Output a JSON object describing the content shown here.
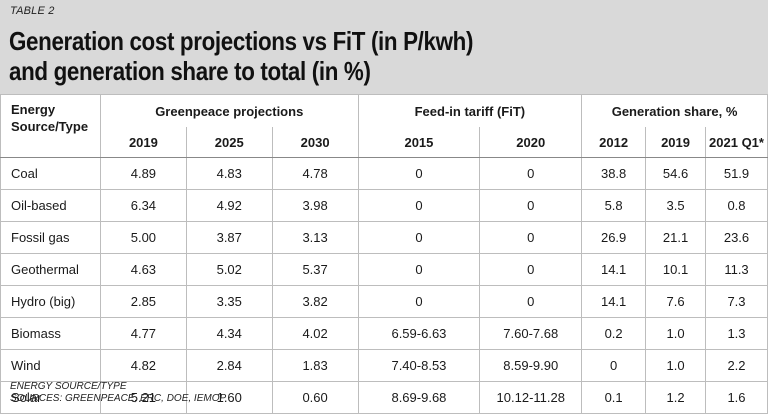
{
  "header": {
    "table_label": "TABLE 2",
    "title_line1": "Generation cost projections vs FiT (in P/kwh)",
    "title_line2": "and generation share to total (in %)"
  },
  "table": {
    "source_header": [
      "Energy",
      "Source/Type"
    ],
    "groups": [
      "Greenpeace projections",
      "Feed-in tariff (FiT)",
      "Generation share, %"
    ],
    "years": [
      "2019",
      "2025",
      "2030",
      "2015",
      "2020",
      "2012",
      "2019",
      "2021 Q1*"
    ],
    "rows": [
      {
        "name": "Coal",
        "values": [
          "4.89",
          "4.83",
          "4.78",
          "0",
          "0",
          "38.8",
          "54.6",
          "51.9"
        ]
      },
      {
        "name": "Oil-based",
        "values": [
          "6.34",
          "4.92",
          "3.98",
          "0",
          "0",
          "5.8",
          "3.5",
          "0.8"
        ]
      },
      {
        "name": "Fossil gas",
        "values": [
          "5.00",
          "3.87",
          "3.13",
          "0",
          "0",
          "26.9",
          "21.1",
          "23.6"
        ]
      },
      {
        "name": "Geothermal",
        "values": [
          "4.63",
          "5.02",
          "5.37",
          "0",
          "0",
          "14.1",
          "10.1",
          "11.3"
        ]
      },
      {
        "name": "Hydro (big)",
        "values": [
          "2.85",
          "3.35",
          "3.82",
          "0",
          "0",
          "14.1",
          "7.6",
          "7.3"
        ]
      },
      {
        "name": "Biomass",
        "values": [
          "4.77",
          "4.34",
          "4.02",
          "6.59-6.63",
          "7.60-7.68",
          "0.2",
          "1.0",
          "1.3"
        ]
      },
      {
        "name": "Wind",
        "values": [
          "4.82",
          "2.84",
          "1.83",
          "7.40-8.53",
          "8.59-9.90",
          "0",
          "1.0",
          "2.2"
        ]
      },
      {
        "name": "Solar",
        "values": [
          "5.21",
          "1.60",
          "0.60",
          "8.69-9.68",
          "10.12-11.28",
          "0.1",
          "1.2",
          "1.6"
        ]
      }
    ]
  },
  "footer": {
    "line1": "ENERGY SOURCE/TYPE",
    "line2": "SOURCES: GREENPEACE, ERC, DOE, IEMOP"
  }
}
